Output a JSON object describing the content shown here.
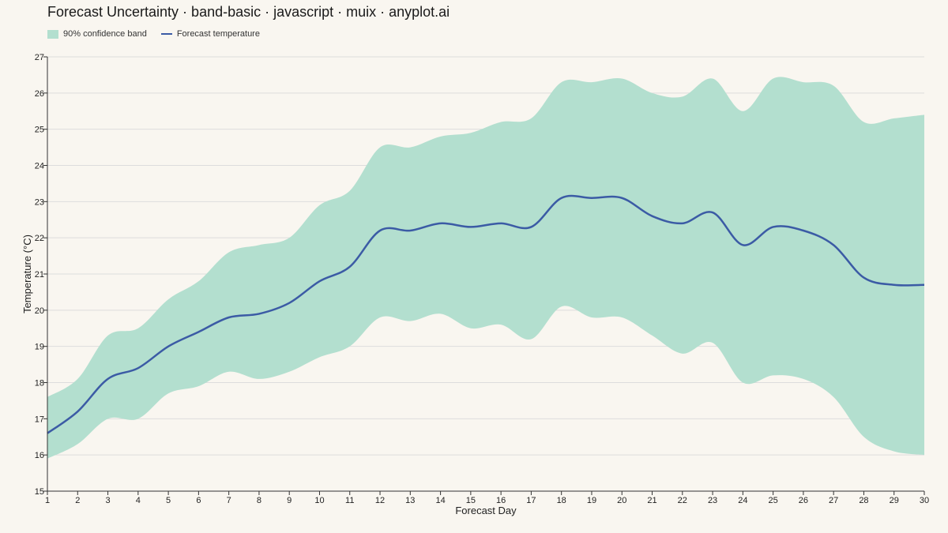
{
  "title": "Forecast Uncertainty · band-basic · javascript · muix · anyplot.ai",
  "legend": {
    "band_label": "90% confidence band",
    "line_label": "Forecast temperature",
    "placement": "top-left"
  },
  "colors": {
    "background": "#F9F6F0",
    "band": "#B3DFCF",
    "line": "#3B5BA5",
    "grid": "#DDDDDD",
    "axis": "#333333"
  },
  "chart_data": {
    "type": "area",
    "title": "Forecast Uncertainty · band-basic · javascript · muix · anyplot.ai",
    "xlabel": "Forecast Day",
    "ylabel": "Temperature (°C)",
    "xlim": [
      1,
      30
    ],
    "ylim": [
      15,
      27
    ],
    "grid": true,
    "x": [
      1,
      2,
      3,
      4,
      5,
      6,
      7,
      8,
      9,
      10,
      11,
      12,
      13,
      14,
      15,
      16,
      17,
      18,
      19,
      20,
      21,
      22,
      23,
      24,
      25,
      26,
      27,
      28,
      29,
      30
    ],
    "x_tick_labels": [
      "1",
      "2",
      "3",
      "4",
      "5",
      "6",
      "7",
      "8",
      "9",
      "10",
      "11",
      "12",
      "13",
      "14",
      "15",
      "16",
      "17",
      "18",
      "19",
      "20",
      "21",
      "22",
      "23",
      "24",
      "25",
      "26",
      "27",
      "28",
      "29",
      "30"
    ],
    "y_tick_labels": [
      "15",
      "16",
      "17",
      "18",
      "19",
      "20",
      "21",
      "22",
      "23",
      "24",
      "25",
      "26",
      "27"
    ],
    "series": [
      {
        "name": "90% confidence band",
        "kind": "band",
        "lower": [
          15.9,
          16.3,
          17.0,
          17.0,
          17.7,
          17.9,
          18.3,
          18.1,
          18.3,
          18.7,
          19.0,
          19.8,
          19.7,
          19.9,
          19.5,
          19.6,
          19.2,
          20.1,
          19.8,
          19.8,
          19.3,
          18.8,
          19.1,
          18.0,
          18.2,
          18.1,
          17.6,
          16.5,
          16.1,
          16.0
        ],
        "upper": [
          17.6,
          18.1,
          19.3,
          19.5,
          20.3,
          20.8,
          21.6,
          21.8,
          22.0,
          22.9,
          23.3,
          24.5,
          24.5,
          24.8,
          24.9,
          25.2,
          25.3,
          26.3,
          26.3,
          26.4,
          26.0,
          25.9,
          26.4,
          25.5,
          26.4,
          26.3,
          26.2,
          25.2,
          25.3,
          25.4
        ]
      },
      {
        "name": "Forecast temperature",
        "kind": "line",
        "values": [
          16.6,
          17.2,
          18.1,
          18.4,
          19.0,
          19.4,
          19.8,
          19.9,
          20.2,
          20.8,
          21.2,
          22.2,
          22.2,
          22.4,
          22.3,
          22.4,
          22.3,
          23.1,
          23.1,
          23.1,
          22.6,
          22.4,
          22.7,
          21.8,
          22.3,
          22.2,
          21.8,
          20.9,
          20.7,
          20.7
        ]
      }
    ]
  }
}
